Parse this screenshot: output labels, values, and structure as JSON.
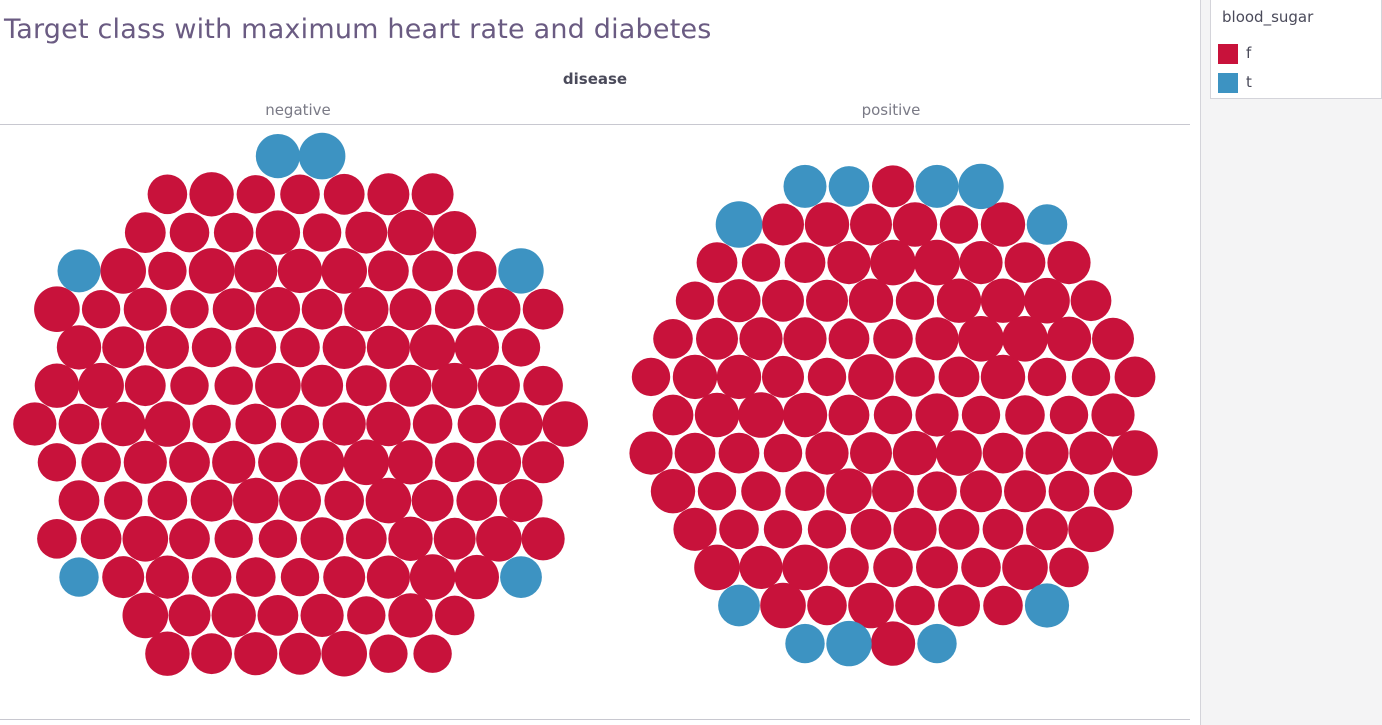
{
  "chart_data": {
    "type": "packed-bubble",
    "title": "Target class with maximum heart rate and diabetes",
    "column_header": "disease",
    "panes": [
      {
        "label": "negative",
        "counts": {
          "f": 131,
          "t": 6
        }
      },
      {
        "label": "positive",
        "counts": {
          "f": 109,
          "t": 11
        }
      }
    ],
    "legend": {
      "title": "blood_sugar",
      "items": [
        {
          "label": "f",
          "color": "#c8123b"
        },
        {
          "label": "t",
          "color": "#3d93c2"
        }
      ]
    }
  }
}
